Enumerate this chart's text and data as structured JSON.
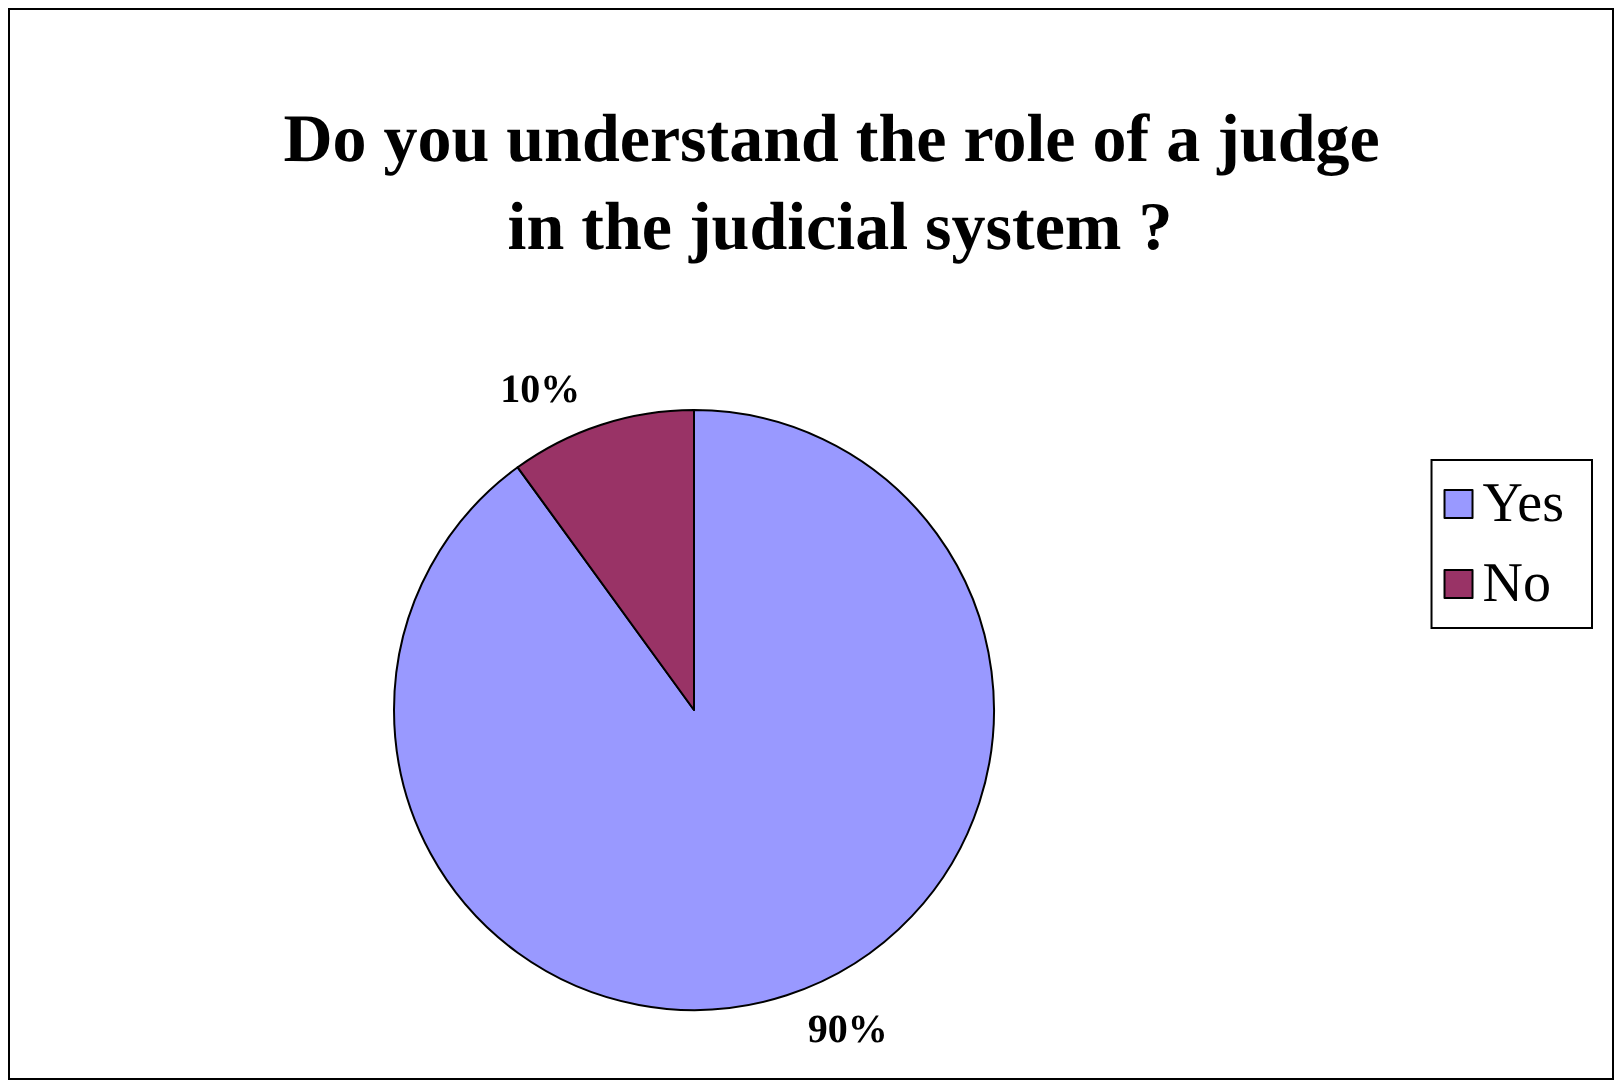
{
  "chart_data": {
    "type": "pie",
    "title": "Do you understand the role of a judge in the judicial system ?",
    "categories": [
      "Yes",
      "No"
    ],
    "values": [
      90,
      10
    ],
    "colors": [
      "#9999ff",
      "#993366"
    ],
    "value_labels": [
      "90%",
      "10%"
    ],
    "legend": "right"
  }
}
